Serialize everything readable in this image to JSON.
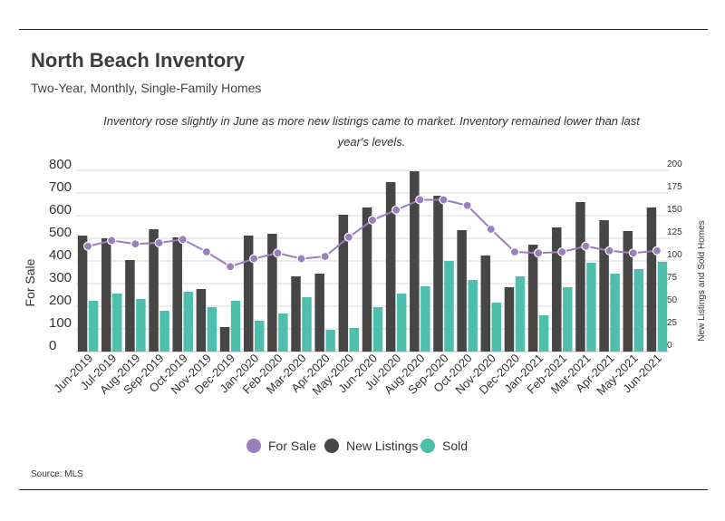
{
  "header": {
    "title": "North Beach Inventory",
    "subtitle": "Two-Year, Monthly, Single-Family Homes",
    "annotation": "Inventory rose slightly in June as more new listings came to market. Inventory remained lower than last year's levels."
  },
  "footer": {
    "source": "Source:  MLS"
  },
  "chart_data": {
    "type": "bar",
    "categories": [
      "Jun-2019",
      "Jul-2019",
      "Aug-2019",
      "Sep-2019",
      "Oct-2019",
      "Nov-2019",
      "Dec-2019",
      "Jan-2020",
      "Feb-2020",
      "Mar-2020",
      "Apr-2020",
      "May-2020",
      "Jun-2020",
      "Jul-2020",
      "Aug-2020",
      "Sep-2020",
      "Oct-2020",
      "Nov-2020",
      "Dec-2020",
      "Jan-2021",
      "Feb-2021",
      "Mar-2021",
      "Apr-2021",
      "May-2021",
      "Jun-2021"
    ],
    "ylabel": "For Sale",
    "ylim": [
      0,
      800
    ],
    "yticks": [
      0,
      100,
      200,
      300,
      400,
      500,
      600,
      700,
      800
    ],
    "y2label": "New Listings and Sold Homes",
    "y2lim": [
      0,
      200
    ],
    "y2ticks": [
      0,
      25,
      50,
      75,
      100,
      125,
      150,
      175,
      200
    ],
    "grid": true,
    "legend_position": "bottom",
    "series": [
      {
        "name": "For Sale",
        "type": "line",
        "axis": "left",
        "color": "#9b7fbd",
        "values": [
          465,
          490,
          475,
          480,
          495,
          440,
          375,
          410,
          435,
          410,
          420,
          505,
          580,
          625,
          670,
          670,
          645,
          540,
          440,
          435,
          440,
          465,
          445,
          435,
          445
        ]
      },
      {
        "name": "New Listings",
        "type": "bar",
        "axis": "right",
        "color": "#464646",
        "values": [
          128,
          125,
          101,
          135,
          126,
          69,
          27,
          128,
          130,
          83,
          86,
          151,
          159,
          187,
          199,
          172,
          134,
          106,
          71,
          118,
          137,
          165,
          145,
          133,
          159
        ]
      },
      {
        "name": "Sold",
        "type": "bar",
        "axis": "right",
        "color": "#4dbfac",
        "values": [
          56,
          64,
          58,
          45,
          66,
          49,
          56,
          34,
          42,
          60,
          24,
          26,
          49,
          64,
          72,
          100,
          79,
          54,
          83,
          40,
          71,
          98,
          86,
          91,
          99
        ]
      }
    ]
  }
}
